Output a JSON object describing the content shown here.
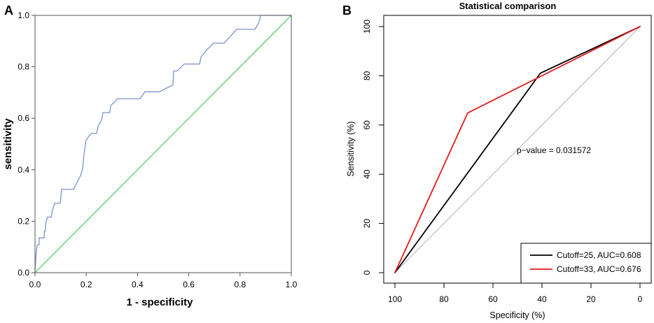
{
  "chart_data": [
    {
      "panel": "A",
      "type": "line",
      "xlabel": "1 - specificity",
      "ylabel": "sensitivity",
      "xlim": [
        0,
        1
      ],
      "ylim": [
        0,
        1
      ],
      "xticks": [
        "0.0",
        "0.2",
        "0.4",
        "0.6",
        "0.8",
        "1.0"
      ],
      "yticks": [
        "0.0",
        "0.2",
        "0.4",
        "0.6",
        "0.8",
        "1.0"
      ],
      "grid": false,
      "series": [
        {
          "color": "#7f92c9",
          "x": [
            0,
            0.003,
            0.008,
            0.016,
            0.016,
            0.036,
            0.036,
            0.041,
            0.041,
            0.049,
            0.063,
            0.068,
            0.077,
            0.098,
            0.104,
            0.15,
            0.164,
            0.178,
            0.186,
            0.191,
            0.199,
            0.208,
            0.219,
            0.24,
            0.246,
            0.26,
            0.265,
            0.292,
            0.295,
            0.309,
            0.322,
            0.41,
            0.429,
            0.486,
            0.538,
            0.541,
            0.555,
            0.582,
            0.642,
            0.648,
            0.669,
            0.697,
            0.738,
            0.787,
            0.858,
            0.874,
            0.88,
            1.0
          ],
          "y": [
            0,
            0.054,
            0.108,
            0.108,
            0.135,
            0.135,
            0.162,
            0.162,
            0.189,
            0.216,
            0.216,
            0.243,
            0.27,
            0.27,
            0.324,
            0.324,
            0.351,
            0.378,
            0.405,
            0.459,
            0.514,
            0.527,
            0.541,
            0.541,
            0.568,
            0.595,
            0.622,
            0.622,
            0.649,
            0.662,
            0.676,
            0.676,
            0.703,
            0.703,
            0.73,
            0.784,
            0.784,
            0.811,
            0.811,
            0.838,
            0.865,
            0.892,
            0.892,
            0.946,
            0.946,
            0.973,
            1.0,
            1.0
          ]
        },
        {
          "color": "#3fc45b",
          "x": [
            0,
            1
          ],
          "y": [
            0,
            1
          ]
        }
      ]
    },
    {
      "panel": "B",
      "type": "line",
      "title": "Statistical comparison",
      "xlabel": "Specificity (%)",
      "ylabel": "Sensitivity (%)",
      "xlim": [
        100,
        0
      ],
      "ylim": [
        0,
        100
      ],
      "xticks": [
        "100",
        "80",
        "60",
        "40",
        "20",
        "0"
      ],
      "yticks": [
        "0",
        "20",
        "40",
        "60",
        "80",
        "100"
      ],
      "grid": false,
      "annotation": "p−value = 0.031572",
      "legend_position": "bottom-right",
      "series": [
        {
          "name": "Cutoff=25, AUC=0.608",
          "color": "#000000",
          "x": [
            100,
            40.6,
            0
          ],
          "y": [
            0,
            81.1,
            100
          ]
        },
        {
          "name": "Cutoff=33, AUC=0.676",
          "color": "#e41a1c",
          "x": [
            100,
            70.3,
            0
          ],
          "y": [
            0,
            64.9,
            100
          ]
        },
        {
          "color": "#b3b3b3",
          "x": [
            100,
            0
          ],
          "y": [
            0,
            100
          ]
        }
      ]
    }
  ]
}
